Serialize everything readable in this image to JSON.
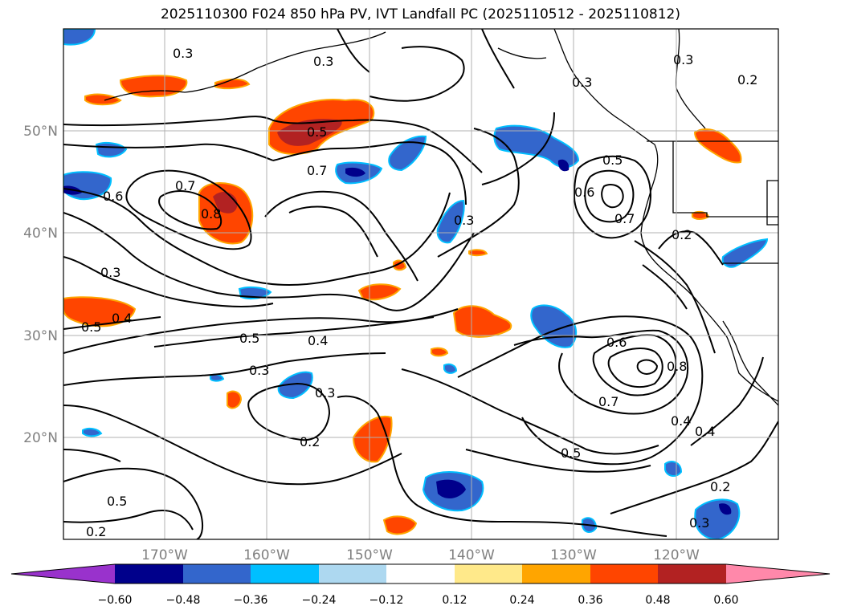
{
  "title": "2025110300 F024 850 hPa PV, IVT Landfall PC (2025110512 - 2025110812)",
  "map": {
    "lat_labels": [
      "50°N",
      "40°N",
      "30°N",
      "20°N"
    ],
    "lon_labels": [
      "170°W",
      "160°W",
      "150°W",
      "140°W",
      "130°W",
      "120°W"
    ],
    "contour_labels": [
      "0.3",
      "0.3",
      "0.5",
      "0.7",
      "0.7",
      "0.8",
      "0.6",
      "0.3",
      "0.3",
      "0.5",
      "0.4",
      "0.5",
      "0.4",
      "0.3",
      "0.3",
      "0.2",
      "0.3",
      "0.5",
      "0.6",
      "0.7",
      "0.2",
      "0.5",
      "0.7",
      "0.6",
      "0.8",
      "0.4",
      "0.4",
      "0.5",
      "0.2",
      "0.3",
      "0.2",
      "0.2",
      "0.3"
    ]
  },
  "colorbar": {
    "ticks": [
      "−0.60",
      "−0.48",
      "−0.36",
      "−0.24",
      "−0.12",
      "0.12",
      "0.24",
      "0.36",
      "0.48",
      "0.60"
    ],
    "colors": [
      "#9932CC",
      "#00008B",
      "#3366CC",
      "#00BFFF",
      "#ADD8F0",
      "#FFFFFF",
      "#FFE98A",
      "#FFA500",
      "#FF4500",
      "#B22222",
      "#FF88AA"
    ]
  }
}
